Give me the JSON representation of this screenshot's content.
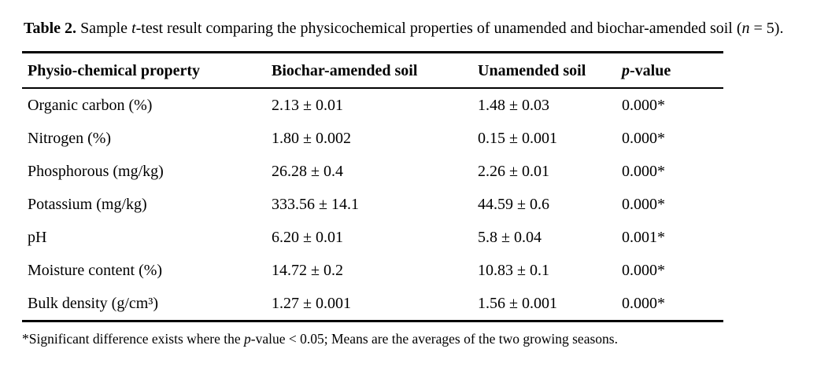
{
  "colors": {
    "text": "#000000",
    "background": "#ffffff",
    "rule": "#000000"
  },
  "caption": {
    "label": "Table 2.",
    "seg1": " Sample ",
    "t_italic": "t",
    "seg2": "-test result comparing the physicochemical properties of unamended and biochar-amended soil (",
    "n_italic": "n",
    "seg3": " = 5)."
  },
  "table": {
    "headers": {
      "property": "Physio-chemical property",
      "biochar": "Biochar-amended soil",
      "unamended": "Unamended soil",
      "p_italic": "p",
      "p_rest": "-value"
    },
    "rows": [
      {
        "property": "Organic carbon (%)",
        "biochar": "2.13 ± 0.01",
        "unamended": "1.48 ± 0.03",
        "p": "0.000*"
      },
      {
        "property": "Nitrogen (%)",
        "biochar": "1.80 ± 0.002",
        "unamended": "0.15 ± 0.001",
        "p": "0.000*"
      },
      {
        "property": "Phosphorous (mg/kg)",
        "biochar": "26.28 ± 0.4",
        "unamended": "2.26 ± 0.01",
        "p": "0.000*"
      },
      {
        "property": "Potassium (mg/kg)",
        "biochar": "333.56 ± 14.1",
        "unamended": "44.59 ± 0.6",
        "p": "0.000*"
      },
      {
        "property": "pH",
        "biochar": "6.20 ± 0.01",
        "unamended": "5.8 ± 0.04",
        "p": "0.001*"
      },
      {
        "property": "Moisture content (%)",
        "biochar": "14.72 ± 0.2",
        "unamended": "10.83 ± 0.1",
        "p": "0.000*"
      },
      {
        "property": "Bulk density (g/cm³)",
        "biochar": "1.27 ± 0.001",
        "unamended": "1.56 ± 0.001",
        "p": "0.000*"
      }
    ]
  },
  "footnote": {
    "seg1": "*Significant difference exists where the ",
    "p_italic": "p",
    "seg2": "-value < 0.05; Means are the averages of the two growing seasons."
  }
}
